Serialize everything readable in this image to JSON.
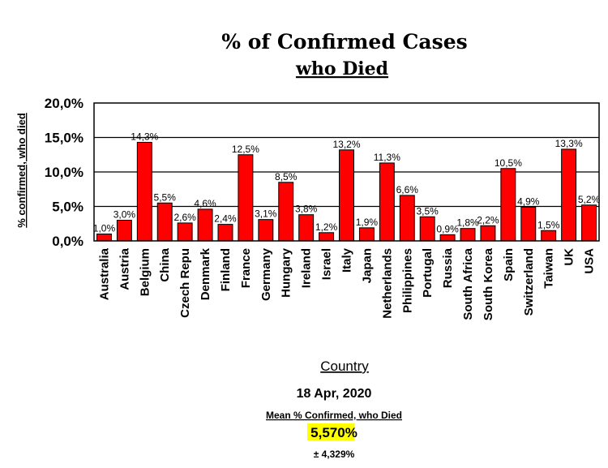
{
  "chart_data": {
    "type": "bar",
    "title": "% of Confirmed Cases",
    "subtitle": "who Died",
    "xlabel": "Country",
    "ylabel": "% confirmed, who died",
    "ylim": [
      0,
      20
    ],
    "yticks": [
      "0,0%",
      "5,0%",
      "10,0%",
      "15,0%",
      "20,0%"
    ],
    "grid": true,
    "bar_color": "#ff0000",
    "categories": [
      "Australia",
      "Austria",
      "Belgium",
      "China",
      "Czech Repu",
      "Denmark",
      "Finland",
      "France",
      "Germany",
      "Hungary",
      "Ireland",
      "Israel",
      "Italy",
      "Japan",
      "Netherlands",
      "Philippines",
      "Portugal",
      "Russia",
      "South Africa",
      "South Korea",
      "Spain",
      "Switzerland",
      "Taiwan",
      "UK",
      "USA"
    ],
    "values": [
      1.0,
      3.0,
      14.3,
      5.5,
      2.6,
      4.6,
      2.4,
      12.5,
      3.1,
      8.5,
      3.8,
      1.2,
      13.2,
      1.9,
      11.3,
      6.6,
      3.5,
      0.9,
      1.8,
      2.2,
      10.5,
      4.9,
      1.5,
      13.3,
      5.2
    ],
    "data_labels": [
      "1,0%",
      "3,0%",
      "14,3%",
      "5,5%",
      "2,6%",
      "4,6%",
      "2,4%",
      "12,5%",
      "3,1%",
      "8,5%",
      "3,8%",
      "1,2%",
      "13,2%",
      "1,9%",
      "11,3%",
      "6,6%",
      "3,5%",
      "0,9%",
      "1,8%",
      "2,2%",
      "10,5%",
      "4,9%",
      "1,5%",
      "13,3%",
      "5,2%"
    ]
  },
  "footer": {
    "date": "18 Apr, 2020",
    "mean_label": "Mean % Confirmed, who Died",
    "mean_value": "5,570",
    "mean_unit": "%",
    "std": "± 4,329%",
    "highlight_color": "#ffff00"
  }
}
